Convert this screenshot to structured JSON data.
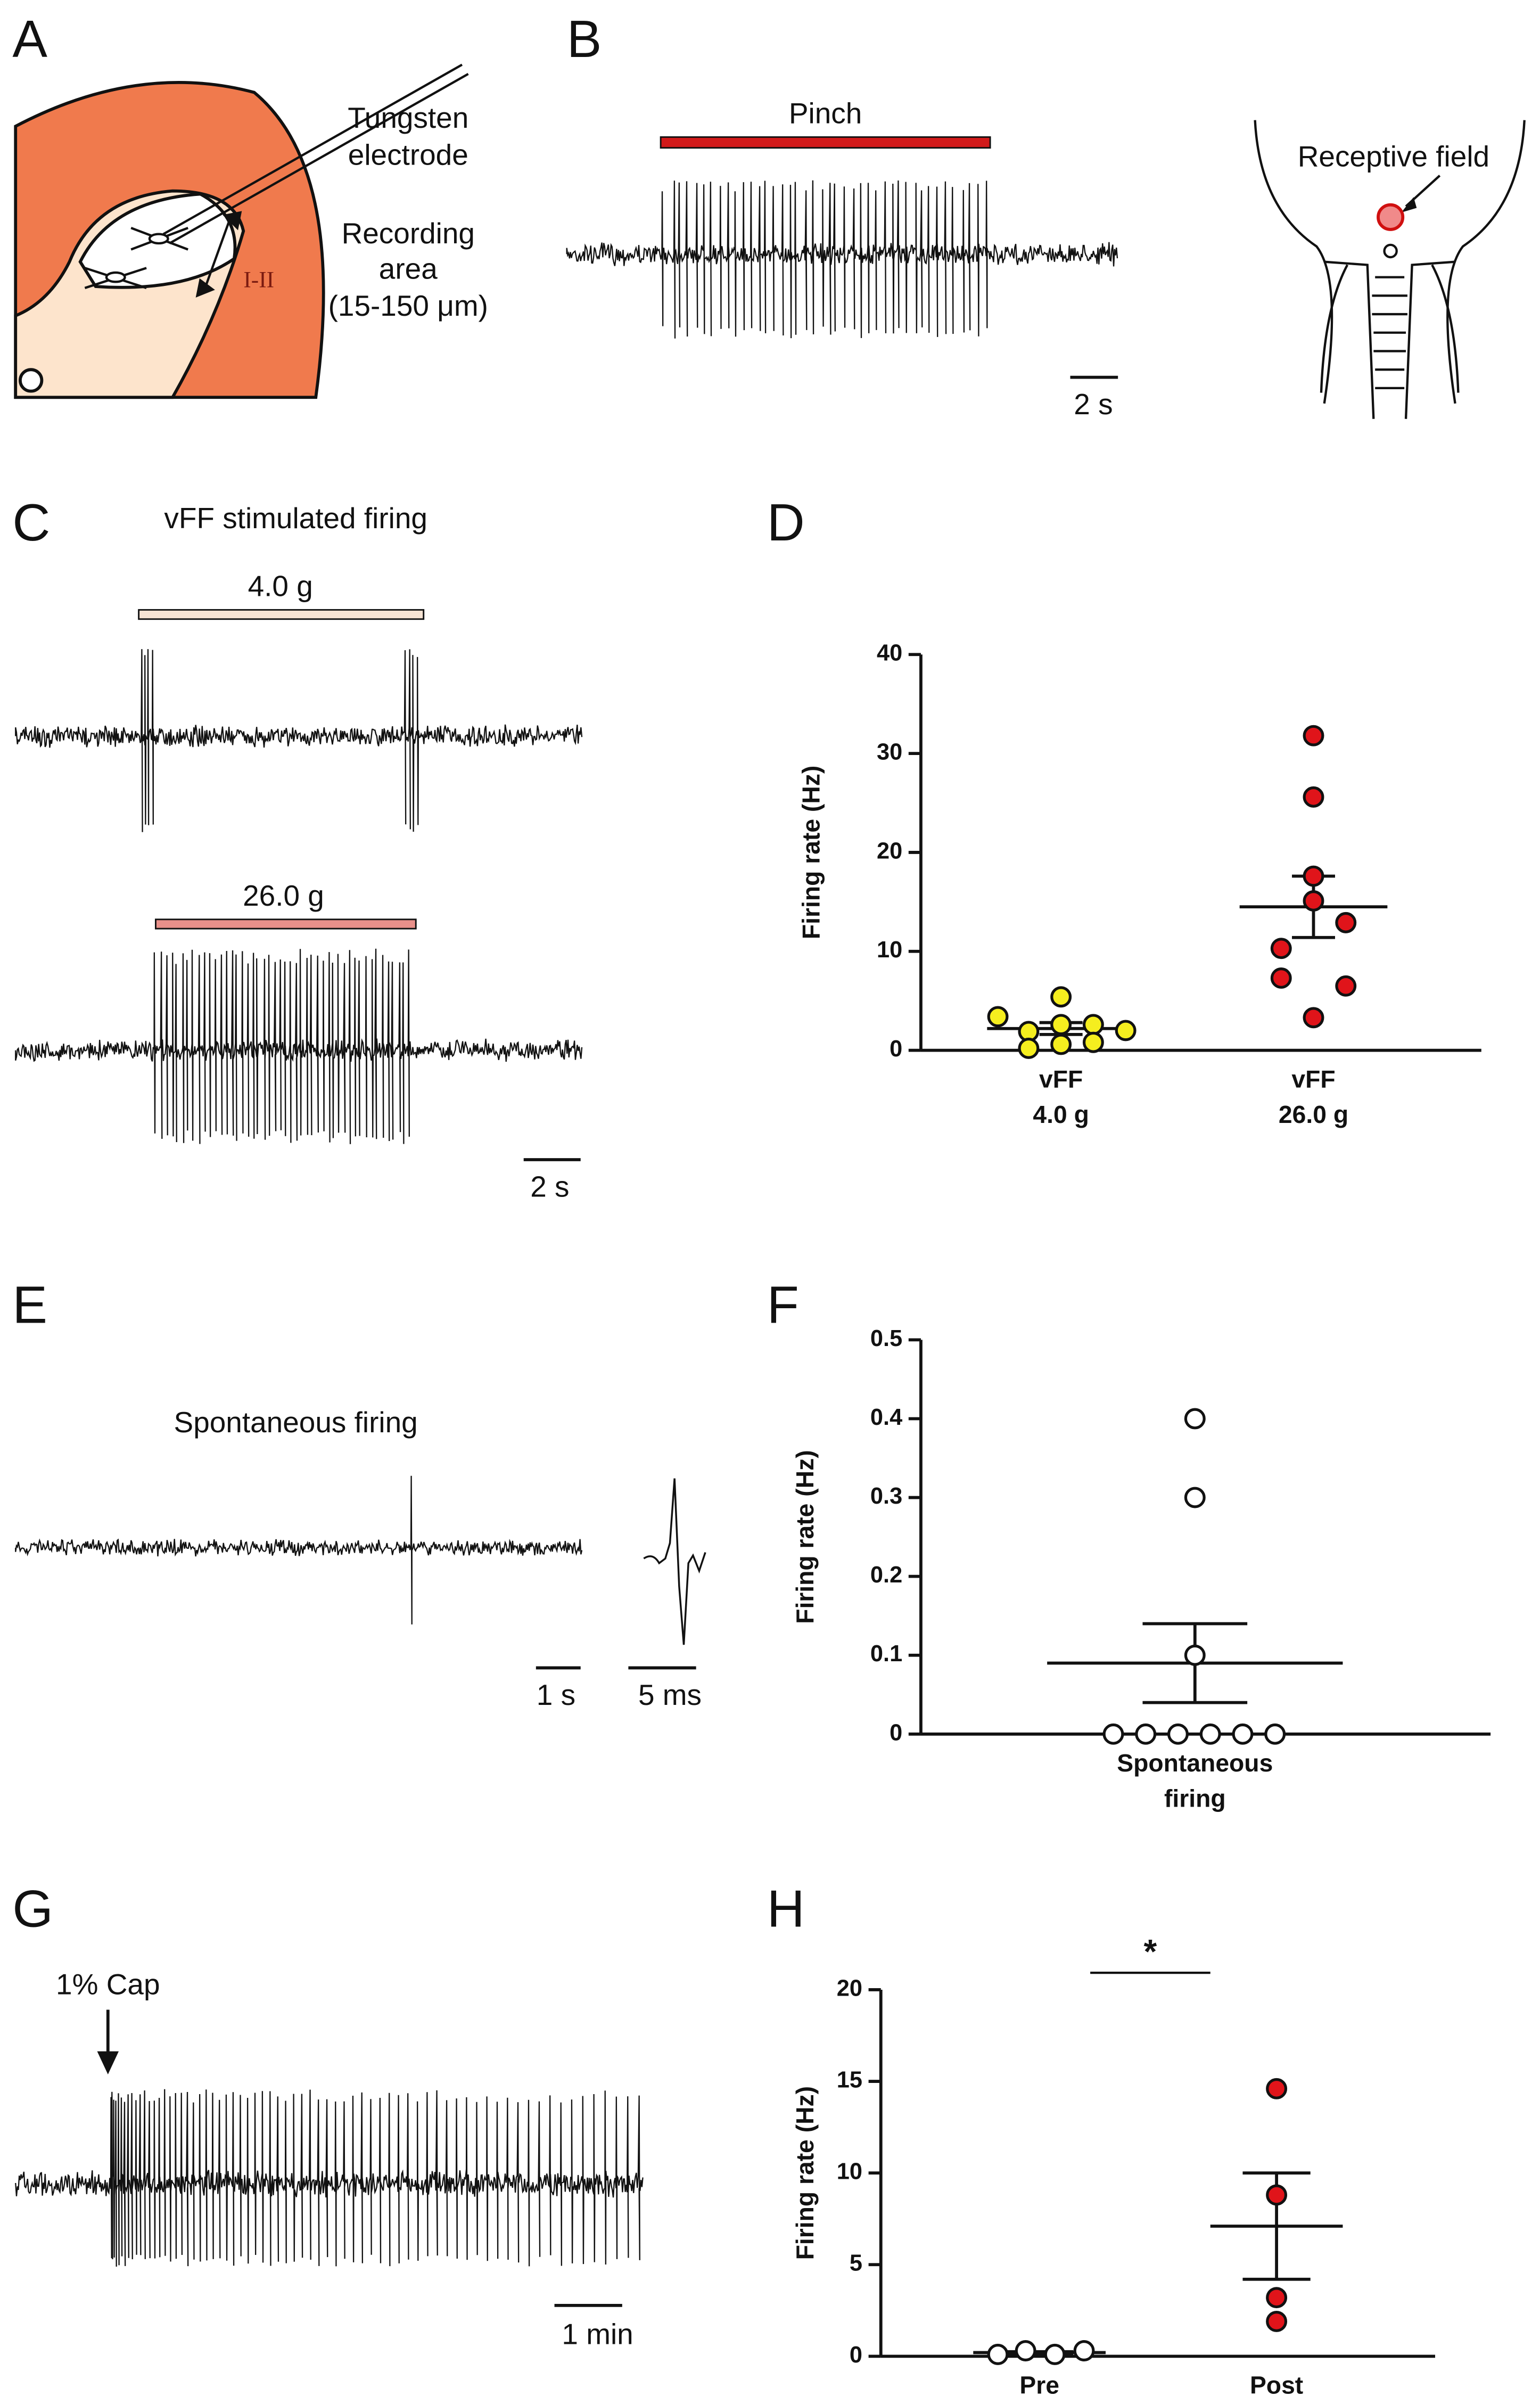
{
  "panel_labels": [
    "A",
    "B",
    "C",
    "D",
    "E",
    "F",
    "G",
    "H"
  ],
  "A": {
    "electrode_label": [
      "Tungsten",
      "electrode"
    ],
    "area_label": [
      "Recording",
      "area",
      "(15-150 μm)"
    ],
    "lamina_label": "I-II"
  },
  "B": {
    "stimulus": "Pinch",
    "scale_bar": "2 s",
    "receptive_field": "Receptive field"
  },
  "C": {
    "title": "vFF stimulated firing",
    "stimuli": [
      "4.0 g",
      "26.0 g"
    ],
    "scale_bar": "2 s"
  },
  "E": {
    "title": "Spontaneous firing",
    "scale_bars": [
      "1 s",
      "5 ms"
    ]
  },
  "G": {
    "stimulus": "1% Cap",
    "scale_bar": "1 min"
  },
  "chart_data": [
    {
      "type": "scatter",
      "ylabel": "Firing rate (Hz)",
      "categories": [
        [
          "vFF",
          "4.0 g"
        ],
        [
          "vFF",
          "26.0 g"
        ]
      ],
      "ylim": [
        0,
        40
      ],
      "yticks": [
        0,
        10,
        20,
        30,
        40
      ],
      "series": [
        {
          "color": "#f5ee1f",
          "values": [
            3.4,
            5.4,
            1.9,
            2.6,
            2.6,
            0.2,
            0.6,
            0.8,
            2.0
          ],
          "mean": 2.2,
          "sem": 0.6
        },
        {
          "color": "#e0141a",
          "values": [
            31.8,
            25.6,
            17.6,
            15.1,
            12.9,
            10.3,
            7.3,
            6.5,
            3.3
          ],
          "mean": 14.5,
          "sem": 3.1
        }
      ]
    },
    {
      "type": "scatter",
      "ylabel": "Firing rate (Hz)",
      "categories": [
        [
          "Spontaneous",
          "firing"
        ]
      ],
      "ylim": [
        0,
        0.5
      ],
      "yticks": [
        0,
        0.1,
        0.2,
        0.3,
        0.4,
        0.5
      ],
      "series": [
        {
          "color": "#ffffff",
          "values": [
            0.4,
            0.3,
            0.1,
            0,
            0,
            0,
            0,
            0,
            0
          ],
          "mean": 0.09,
          "sem": 0.05
        }
      ]
    },
    {
      "type": "scatter",
      "ylabel": "Firing rate (Hz)",
      "categories": [
        [
          "Pre"
        ],
        [
          "Post"
        ]
      ],
      "ylim": [
        0,
        20
      ],
      "yticks": [
        0,
        5,
        10,
        15,
        20
      ],
      "annotation": "*",
      "series": [
        {
          "color": "#ffffff",
          "values": [
            0.1,
            0.3,
            0.1,
            0.3
          ],
          "mean": 0.2,
          "sem": 0.05
        },
        {
          "color": "#e0141a",
          "values": [
            14.6,
            8.8,
            3.2,
            1.9
          ],
          "mean": 7.1,
          "sem": 2.9
        }
      ]
    }
  ]
}
